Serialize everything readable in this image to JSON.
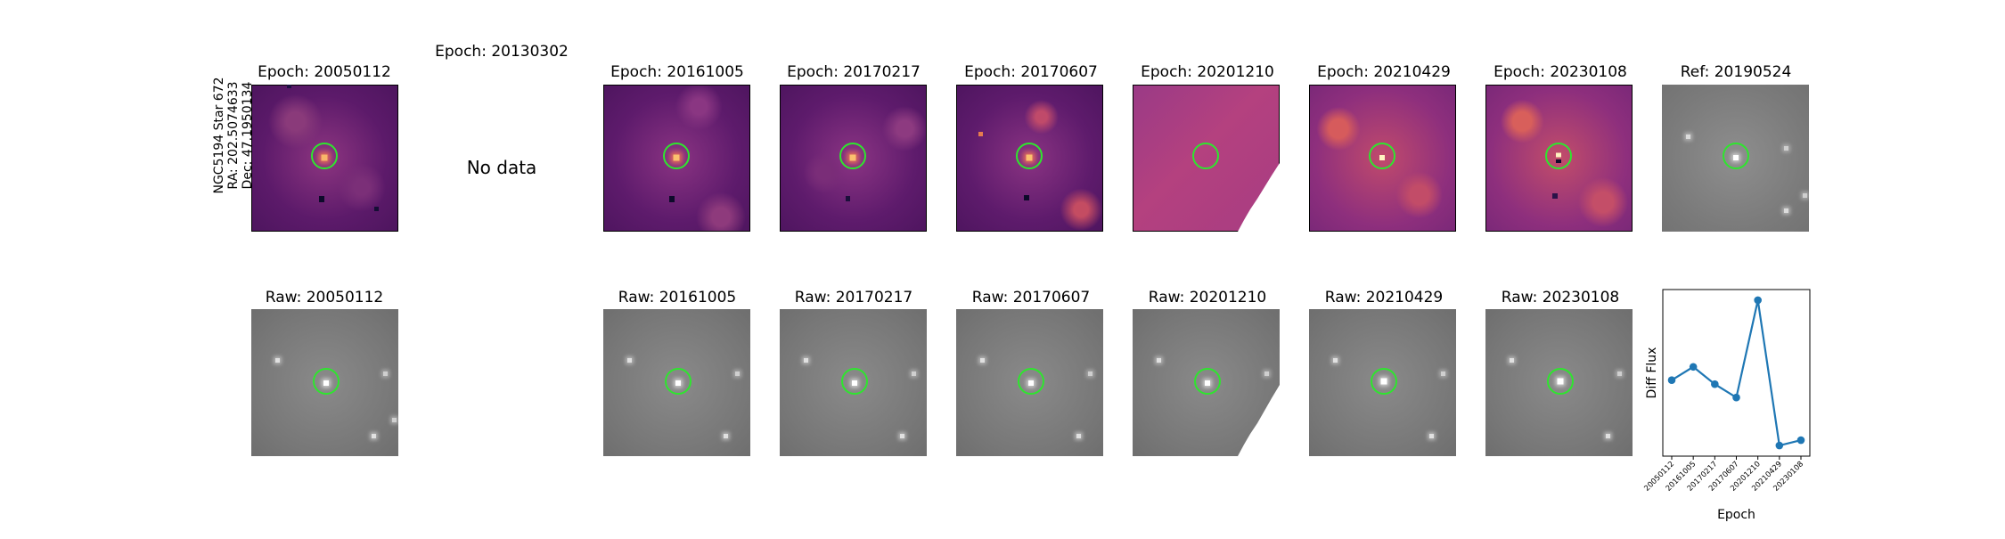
{
  "target": {
    "name": "NGC5194 Star 672",
    "ra": "RA: 202.5074633",
    "dec": "Dec: 47.1950134"
  },
  "top_row": [
    {
      "title": "Epoch: 20050112",
      "kind": "diff",
      "has_data": true
    },
    {
      "title": "Epoch: 20130302",
      "kind": "diff",
      "has_data": false,
      "message": "No data"
    },
    {
      "title": "Epoch: 20161005",
      "kind": "diff",
      "has_data": true
    },
    {
      "title": "Epoch: 20170217",
      "kind": "diff",
      "has_data": true
    },
    {
      "title": "Epoch: 20170607",
      "kind": "diff",
      "has_data": true
    },
    {
      "title": "Epoch: 20201210",
      "kind": "diff",
      "has_data": true,
      "partial": true
    },
    {
      "title": "Epoch: 20210429",
      "kind": "diff",
      "has_data": true
    },
    {
      "title": "Epoch: 20230108",
      "kind": "diff",
      "has_data": true
    },
    {
      "title": "Ref: 20190524",
      "kind": "raw",
      "has_data": true
    }
  ],
  "bottom_row": [
    {
      "title": "Raw: 20050112"
    },
    {
      "title": "Raw: 20161005"
    },
    {
      "title": "Raw: 20170217"
    },
    {
      "title": "Raw: 20170607"
    },
    {
      "title": "Raw: 20201210",
      "partial": true
    },
    {
      "title": "Raw: 20210429"
    },
    {
      "title": "Raw: 20230108"
    }
  ],
  "colors": {
    "circle": "#2ee62e",
    "line": "#1f77b4"
  },
  "chart_data": {
    "type": "line",
    "x": [
      "20050112",
      "20161005",
      "20170217",
      "20170607",
      "20201210",
      "20210429",
      "20230108"
    ],
    "series": [
      {
        "values": [
          0.4,
          0.5,
          0.37,
          0.27,
          1.0,
          -0.09,
          -0.05
        ]
      }
    ],
    "xlabel": "Epoch",
    "ylabel": "Diff Flux",
    "ylim": [
      -0.17,
      1.08
    ]
  }
}
